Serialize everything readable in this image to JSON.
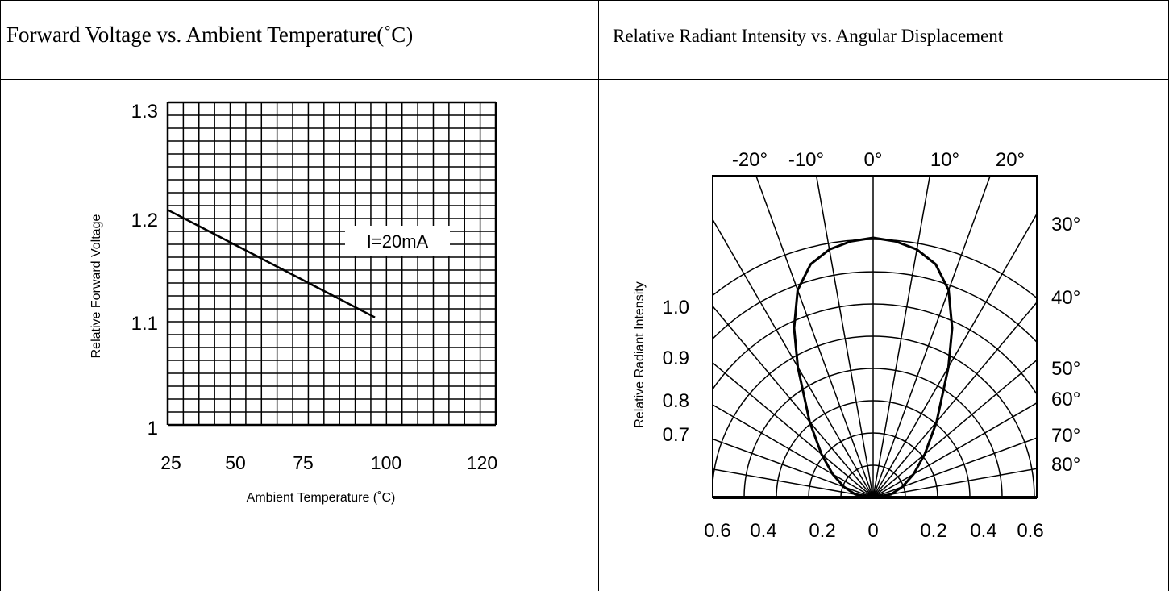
{
  "cells": [
    {
      "title": "Forward Voltage vs. Ambient Temperature(˚C)"
    },
    {
      "title": "Relative Radiant Intensity vs. Angular Displacement"
    }
  ],
  "chart_data": [
    {
      "type": "line",
      "title": "Forward Voltage vs. Ambient Temperature(˚C)",
      "xlabel": "Ambient Temperature (˚C)",
      "ylabel": "Relative Forward Voltage",
      "xlim": [
        25,
        120
      ],
      "ylim": [
        1.0,
        1.3
      ],
      "x_ticks": [
        "25",
        "50",
        "75",
        "100",
        "120"
      ],
      "y_ticks": [
        "1.3",
        "1.2",
        "1.1",
        "1"
      ],
      "annotation": "I=20mA",
      "grid": true,
      "series": [
        {
          "x": [
            25,
            85
          ],
          "y": [
            1.2,
            1.1
          ]
        }
      ]
    },
    {
      "type": "polar",
      "title": "Relative Radiant Intensity vs. Angular Displacement",
      "ylabel": "Relative Radiant Intensity",
      "angle_ticks_top": [
        "-20°",
        "-10°",
        "0°",
        "10°",
        "20°"
      ],
      "angle_ticks_right": [
        "30°",
        "40°",
        "50°",
        "60°",
        "70°",
        "80°"
      ],
      "radial_ticks_left": [
        "1.0",
        "0.9",
        "0.8",
        "0.7"
      ],
      "bottom_ticks": [
        "0.6",
        "0.4",
        "0.2",
        "0",
        "0.2",
        "0.4",
        "0.6"
      ],
      "grid": true,
      "series": [
        {
          "angle_deg": [
            0,
            5,
            10,
            15,
            20,
            25,
            30,
            40,
            50,
            60,
            70,
            80,
            90
          ],
          "relative_intensity": [
            1.0,
            0.99,
            0.97,
            0.93,
            0.85,
            0.72,
            0.58,
            0.38,
            0.26,
            0.18,
            0.12,
            0.07,
            0.0
          ]
        }
      ]
    }
  ]
}
